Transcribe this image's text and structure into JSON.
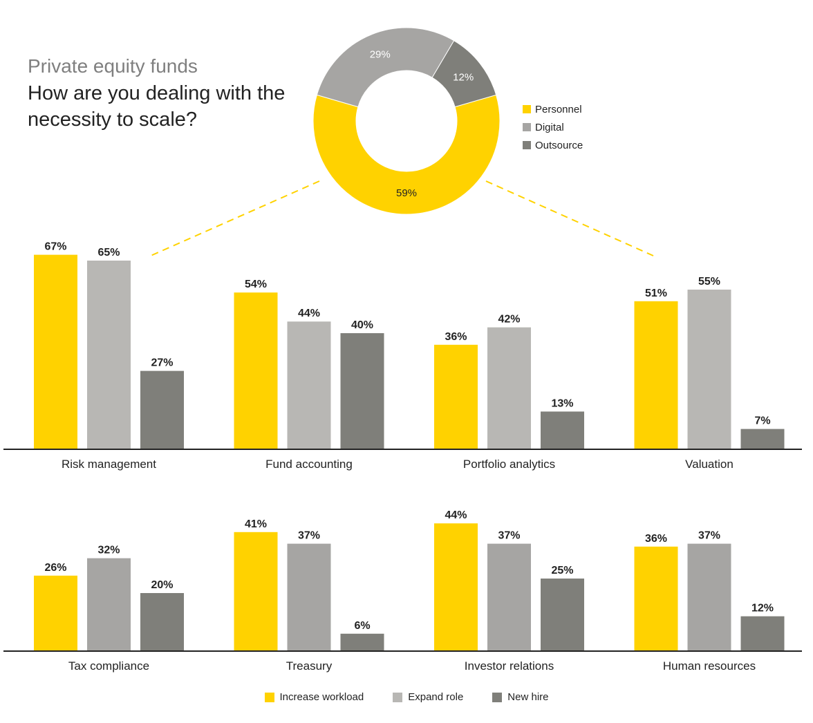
{
  "header": {
    "subtitle": "Private equity funds",
    "title": "How are you dealing with the necessity to scale?"
  },
  "colors": {
    "yellow": "#FFD200",
    "light_gray": "#B8B7B4",
    "donut_gray": "#A6A5A3",
    "dark_gray": "#7F7F7A",
    "text": "#222222"
  },
  "donut_legend": [
    "Personnel",
    "Digital",
    "Outsource"
  ],
  "bottom_legend": [
    "Increase workload",
    "Expand role",
    "New hire"
  ],
  "chart_data": [
    {
      "type": "pie",
      "style": "donut",
      "categories": [
        "Personnel",
        "Digital",
        "Outsource"
      ],
      "values": [
        59,
        29,
        12
      ],
      "labels": [
        "59%",
        "29%",
        "12%"
      ],
      "colors": [
        "#FFD200",
        "#A6A5A3",
        "#7F7F7A"
      ]
    },
    {
      "type": "bar",
      "categories": [
        "Risk management",
        "Fund accounting",
        "Portfolio analytics",
        "Valuation"
      ],
      "series": [
        {
          "name": "Increase workload",
          "values": [
            67,
            54,
            36,
            51
          ],
          "color": "#FFD200"
        },
        {
          "name": "Expand role",
          "values": [
            65,
            44,
            42,
            55
          ],
          "color": "#B8B7B4"
        },
        {
          "name": "New hire",
          "values": [
            27,
            40,
            13,
            7
          ],
          "color": "#7F7F7A"
        }
      ],
      "unit": "%",
      "ylim": [
        0,
        70
      ]
    },
    {
      "type": "bar",
      "categories": [
        "Tax compliance",
        "Treasury",
        "Investor relations",
        "Human resources"
      ],
      "series": [
        {
          "name": "Increase workload",
          "values": [
            26,
            41,
            44,
            36
          ],
          "color": "#FFD200"
        },
        {
          "name": "Expand role",
          "values": [
            32,
            37,
            37,
            37
          ],
          "color": "#A6A5A3"
        },
        {
          "name": "New hire",
          "values": [
            20,
            6,
            25,
            12
          ],
          "color": "#7F7F7A"
        }
      ],
      "unit": "%",
      "ylim": [
        0,
        70
      ]
    }
  ]
}
